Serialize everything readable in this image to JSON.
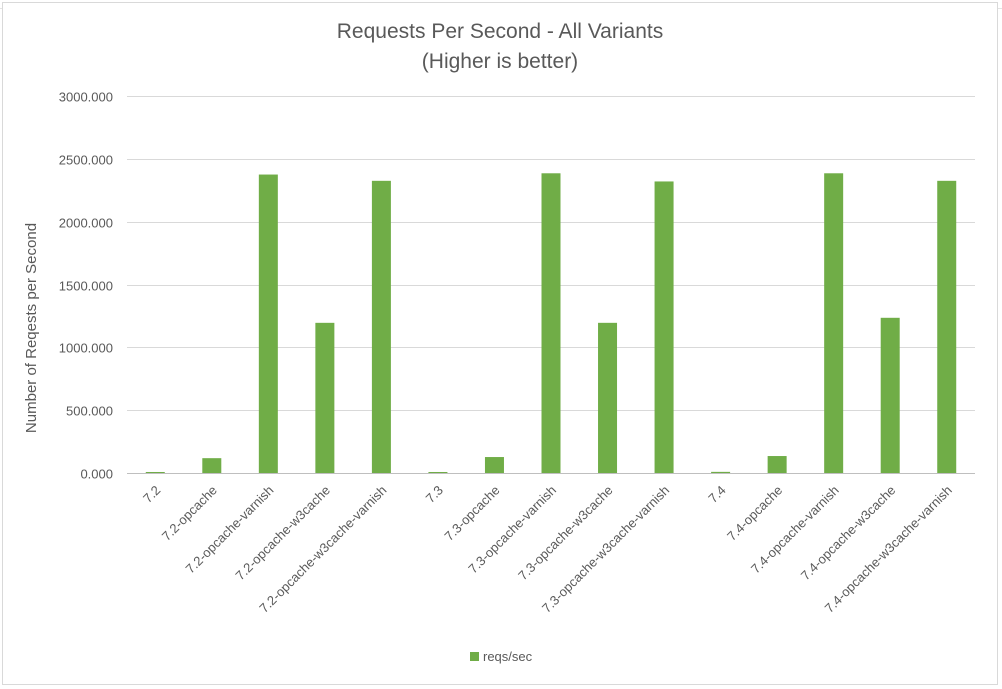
{
  "chart_data": {
    "type": "bar",
    "title": "Requests Per Second - All Variants",
    "subtitle": "(Higher is better)",
    "xlabel": "",
    "ylabel": "Number of Reqests per Second",
    "ylim": [
      0,
      3000
    ],
    "yticks": [
      "0.000",
      "500.000",
      "1000.000",
      "1500.000",
      "2000.000",
      "2500.000",
      "3000.000"
    ],
    "ytick_values": [
      0,
      500,
      1000,
      1500,
      2000,
      2500,
      3000
    ],
    "grid": true,
    "legend_position": "bottom",
    "categories": [
      "7.2",
      "7.2-opcache",
      "7.2-opcache-varnish",
      "7.2-opcache-w3cache",
      "7.2-opcache-w3cache-varnish",
      "7.3",
      "7.3-opcache",
      "7.3-opcache-varnish",
      "7.3-opcache-w3cache",
      "7.3-opcache-w3cache-varnish",
      "7.4",
      "7.4-opcache",
      "7.4-opcache-varnish",
      "7.4-opcache-w3cache",
      "7.4-opcache-w3cache-varnish"
    ],
    "series": [
      {
        "name": "reqs/sec",
        "color": "#70ad47",
        "values": [
          8,
          118,
          2375,
          1195,
          2325,
          8,
          127,
          2385,
          1195,
          2320,
          9,
          135,
          2385,
          1235,
          2325
        ]
      }
    ]
  }
}
